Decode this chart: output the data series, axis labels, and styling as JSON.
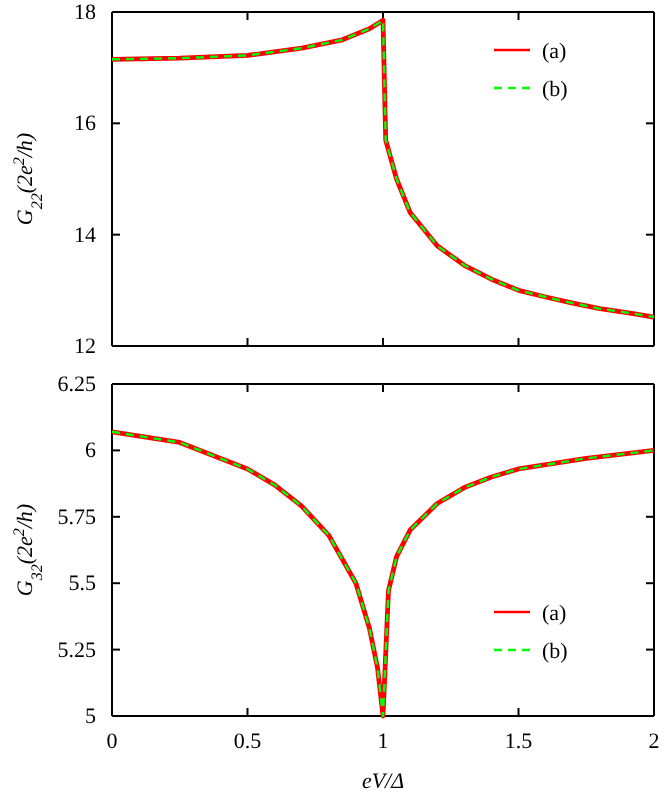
{
  "chart_data": [
    {
      "type": "line",
      "ylabel": "G$_{22}$(2e$^{2}$/h)",
      "xlim": [
        0,
        2
      ],
      "xticks": [
        0,
        0.5,
        1,
        1.5,
        2
      ],
      "ylim": [
        12,
        18
      ],
      "yticks": [
        12,
        14,
        16,
        18
      ],
      "tick_labels": "y",
      "legend": "top right",
      "series": [
        {
          "name": "(a)",
          "color": "#ff0000",
          "line_style": "solid",
          "x": [
            0,
            0.25,
            0.5,
            0.7,
            0.85,
            0.95,
            1.0,
            1.01,
            1.05,
            1.1,
            1.2,
            1.3,
            1.4,
            1.5,
            1.6,
            1.7,
            1.8,
            1.9,
            2.0
          ],
          "values": [
            17.15,
            17.17,
            17.22,
            17.35,
            17.5,
            17.7,
            17.85,
            15.7,
            15.0,
            14.4,
            13.8,
            13.45,
            13.2,
            13.0,
            12.88,
            12.77,
            12.67,
            12.6,
            12.52
          ]
        },
        {
          "name": "(b)",
          "color": "#00ff00",
          "line_style": "dashed",
          "x": [
            0,
            0.25,
            0.5,
            0.7,
            0.85,
            0.95,
            1.0,
            1.01,
            1.05,
            1.1,
            1.2,
            1.3,
            1.4,
            1.5,
            1.6,
            1.7,
            1.8,
            1.9,
            2.0
          ],
          "values": [
            17.15,
            17.17,
            17.22,
            17.35,
            17.5,
            17.7,
            17.85,
            15.7,
            15.0,
            14.4,
            13.8,
            13.45,
            13.2,
            13.0,
            12.88,
            12.77,
            12.67,
            12.6,
            12.52
          ]
        }
      ]
    },
    {
      "type": "line",
      "xlabel": "eV/Δ",
      "ylabel": "G$_{32}$(2e$^{2}$/h)",
      "xlim": [
        0,
        2
      ],
      "xticks": [
        0,
        0.5,
        1,
        1.5,
        2
      ],
      "ylim": [
        5,
        6.25
      ],
      "yticks": [
        5,
        5.25,
        5.5,
        5.75,
        6,
        6.25
      ],
      "legend": "bottom right",
      "series": [
        {
          "name": "(a)",
          "color": "#ff0000",
          "line_style": "solid",
          "x": [
            0,
            0.25,
            0.5,
            0.6,
            0.7,
            0.8,
            0.9,
            0.95,
            0.98,
            1.0,
            1.02,
            1.05,
            1.1,
            1.2,
            1.3,
            1.4,
            1.5,
            1.75,
            2.0
          ],
          "values": [
            6.07,
            6.03,
            5.93,
            5.87,
            5.79,
            5.68,
            5.5,
            5.33,
            5.18,
            5.0,
            5.47,
            5.6,
            5.7,
            5.8,
            5.86,
            5.9,
            5.93,
            5.97,
            6.0
          ]
        },
        {
          "name": "(b)",
          "color": "#00ff00",
          "line_style": "dashed",
          "x": [
            0,
            0.25,
            0.5,
            0.6,
            0.7,
            0.8,
            0.9,
            0.95,
            0.98,
            1.0,
            1.02,
            1.05,
            1.1,
            1.2,
            1.3,
            1.4,
            1.5,
            1.75,
            2.0
          ],
          "values": [
            6.07,
            6.03,
            5.93,
            5.87,
            5.79,
            5.68,
            5.5,
            5.33,
            5.18,
            5.0,
            5.47,
            5.6,
            5.7,
            5.8,
            5.86,
            5.9,
            5.93,
            5.97,
            6.0
          ]
        }
      ]
    }
  ]
}
